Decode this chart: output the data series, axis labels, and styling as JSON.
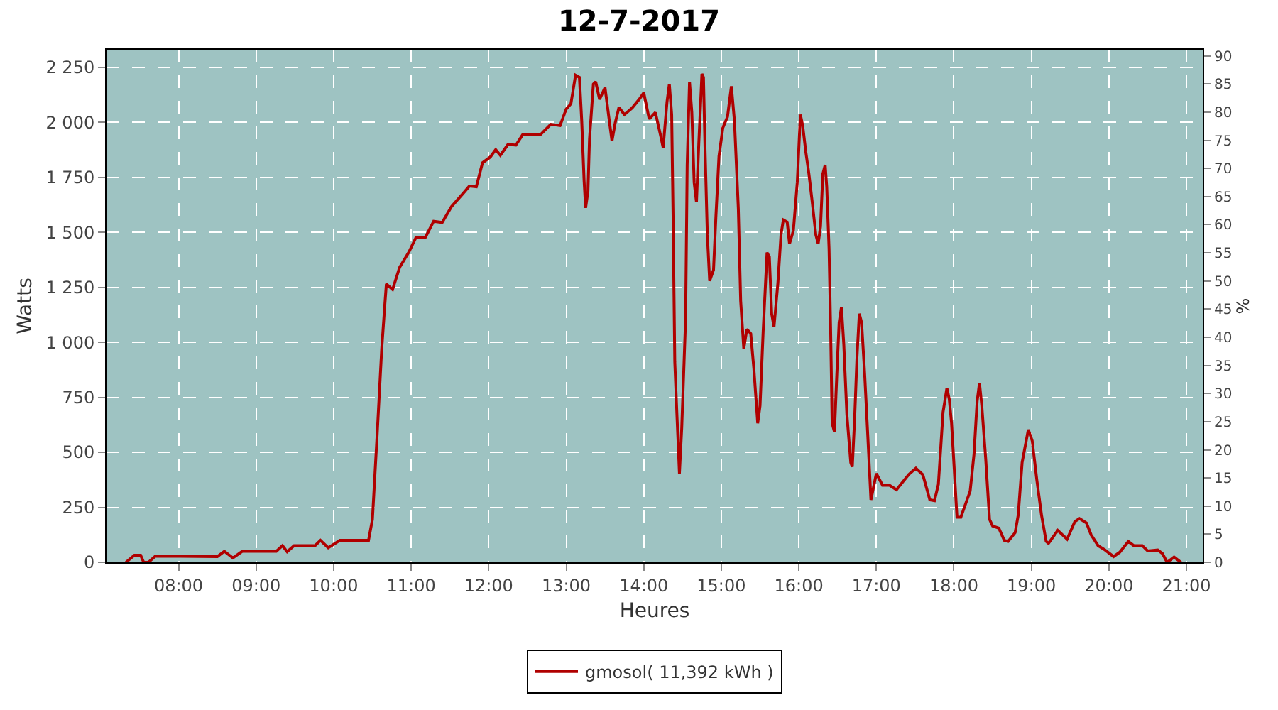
{
  "chart_data": {
    "type": "line",
    "title": "12-7-2017",
    "xlabel": "Heures",
    "ylabel": "Watts",
    "y2label": "%",
    "x": [
      7.32,
      7.43,
      7.51,
      7.55,
      7.61,
      7.7,
      8.5,
      8.59,
      8.7,
      8.82,
      9.26,
      9.34,
      9.4,
      9.49,
      9.76,
      9.83,
      9.93,
      10.08,
      10.45,
      10.5,
      10.56,
      10.62,
      10.66,
      10.68,
      10.76,
      10.85,
      10.97,
      11.06,
      11.18,
      11.29,
      11.4,
      11.52,
      11.67,
      11.75,
      11.84,
      11.92,
      12.02,
      12.09,
      12.15,
      12.25,
      12.35,
      12.44,
      12.67,
      12.8,
      12.92,
      13.0,
      13.06,
      13.12,
      13.17,
      13.2,
      13.23,
      13.25,
      13.28,
      13.3,
      13.35,
      13.38,
      13.43,
      13.5,
      13.56,
      13.59,
      13.63,
      13.68,
      13.75,
      13.85,
      13.94,
      14.0,
      14.07,
      14.15,
      14.22,
      14.25,
      14.3,
      14.33,
      14.36,
      14.38,
      14.4,
      14.43,
      14.46,
      14.49,
      14.54,
      14.56,
      14.59,
      14.62,
      14.65,
      14.68,
      14.71,
      14.75,
      14.77,
      14.79,
      14.82,
      14.85,
      14.9,
      14.93,
      14.97,
      15.02,
      15.08,
      15.13,
      15.17,
      15.22,
      15.25,
      15.29,
      15.33,
      15.38,
      15.42,
      15.47,
      15.5,
      15.54,
      15.59,
      15.62,
      15.65,
      15.68,
      15.73,
      15.77,
      15.8,
      15.85,
      15.88,
      15.93,
      15.98,
      16.02,
      16.05,
      16.09,
      16.13,
      16.17,
      16.22,
      16.25,
      16.28,
      16.31,
      16.34,
      16.36,
      16.39,
      16.41,
      16.43,
      16.46,
      16.49,
      16.52,
      16.55,
      16.58,
      16.62,
      16.67,
      16.69,
      16.72,
      16.75,
      16.78,
      16.81,
      16.85,
      16.89,
      16.93,
      17.0,
      17.08,
      17.17,
      17.26,
      17.42,
      17.51,
      17.6,
      17.69,
      17.75,
      17.8,
      17.86,
      17.91,
      17.94,
      17.97,
      18.0,
      18.04,
      18.09,
      18.21,
      18.26,
      18.3,
      18.33,
      18.36,
      18.41,
      18.46,
      18.5,
      18.58,
      18.65,
      18.7,
      18.79,
      18.83,
      18.88,
      18.96,
      19.01,
      19.07,
      19.13,
      19.19,
      19.22,
      19.34,
      19.46,
      19.56,
      19.62,
      19.71,
      19.77,
      19.86,
      19.95,
      20.06,
      20.14,
      20.25,
      20.32,
      20.43,
      20.5,
      20.63,
      20.69,
      20.75,
      20.84,
      20.93
    ],
    "series": [
      {
        "name": "gmosol( 11,392 kWh )",
        "color": "#b00000",
        "values": [
          0,
          32,
          32,
          0,
          0,
          28,
          26,
          50,
          20,
          50,
          50,
          76,
          48,
          76,
          76,
          100,
          66,
          100,
          100,
          195,
          573,
          970,
          1170,
          1265,
          1240,
          1340,
          1410,
          1475,
          1475,
          1550,
          1545,
          1617,
          1677,
          1710,
          1707,
          1816,
          1842,
          1876,
          1850,
          1900,
          1896,
          1945,
          1945,
          1991,
          1985,
          2060,
          2084,
          2214,
          2204,
          2005,
          1736,
          1611,
          1687,
          1925,
          2174,
          2184,
          2104,
          2158,
          1995,
          1915,
          1995,
          2068,
          2035,
          2065,
          2104,
          2134,
          2015,
          2045,
          1935,
          1885,
          2094,
          2174,
          2035,
          1527,
          911,
          652,
          404,
          613,
          1110,
          1806,
          2184,
          2045,
          1726,
          1637,
          1905,
          2220,
          2204,
          1885,
          1488,
          1279,
          1329,
          1567,
          1846,
          1975,
          2025,
          2164,
          2005,
          1607,
          1189,
          971,
          1060,
          1040,
          881,
          632,
          712,
          1050,
          1408,
          1388,
          1130,
          1070,
          1269,
          1488,
          1557,
          1547,
          1448,
          1508,
          1726,
          2035,
          1985,
          1866,
          1766,
          1647,
          1488,
          1448,
          1527,
          1766,
          1806,
          1707,
          1428,
          1070,
          632,
          593,
          851,
          1090,
          1160,
          991,
          672,
          453,
          434,
          652,
          931,
          1130,
          1090,
          851,
          573,
          284,
          404,
          350,
          350,
          330,
          400,
          428,
          398,
          284,
          280,
          354,
          682,
          792,
          742,
          632,
          453,
          205,
          205,
          324,
          493,
          732,
          815,
          712,
          473,
          195,
          165,
          155,
          100,
          95,
          135,
          215,
          453,
          603,
          553,
          374,
          215,
          95,
          86,
          145,
          105,
          185,
          199,
          179,
          125,
          76,
          56,
          26,
          46,
          95,
          76,
          76,
          52,
          56,
          40,
          0,
          24,
          0
        ]
      }
    ],
    "xlim": [
      7.07,
      21.21
    ],
    "xticks": [
      {
        "value": 8,
        "label": "08:00"
      },
      {
        "value": 9,
        "label": "09:00"
      },
      {
        "value": 10,
        "label": "10:00"
      },
      {
        "value": 11,
        "label": "11:00"
      },
      {
        "value": 12,
        "label": "12:00"
      },
      {
        "value": 13,
        "label": "13:00"
      },
      {
        "value": 14,
        "label": "14:00"
      },
      {
        "value": 15,
        "label": "15:00"
      },
      {
        "value": 16,
        "label": "16:00"
      },
      {
        "value": 17,
        "label": "17:00"
      },
      {
        "value": 18,
        "label": "18:00"
      },
      {
        "value": 19,
        "label": "19:00"
      },
      {
        "value": 20,
        "label": "20:00"
      },
      {
        "value": 21,
        "label": "21:00"
      }
    ],
    "ylim": [
      0,
      2330
    ],
    "yticks": [
      0,
      250,
      500,
      750,
      {
        "value": 1000,
        "label": "1 000"
      },
      {
        "value": 1250,
        "label": "1 250"
      },
      {
        "value": 1500,
        "label": "1 500"
      },
      {
        "value": 1750,
        "label": "1 750"
      },
      {
        "value": 2000,
        "label": "2 000"
      },
      {
        "value": 2250,
        "label": "2 250"
      }
    ],
    "y2lim": [
      0,
      91.1
    ],
    "y2ticks": [
      0,
      5,
      10,
      15,
      20,
      25,
      30,
      35,
      40,
      45,
      50,
      55,
      60,
      65,
      70,
      75,
      80,
      85,
      90
    ],
    "grid": true,
    "legend": "bottom",
    "marker": "none",
    "line_style": "solid"
  }
}
